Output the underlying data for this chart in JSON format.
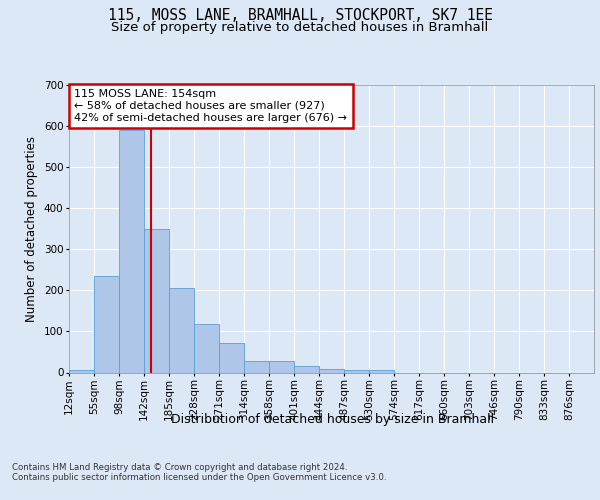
{
  "title1": "115, MOSS LANE, BRAMHALL, STOCKPORT, SK7 1EE",
  "title2": "Size of property relative to detached houses in Bramhall",
  "xlabel": "Distribution of detached houses by size in Bramhall",
  "ylabel": "Number of detached properties",
  "footnote": "Contains HM Land Registry data © Crown copyright and database right 2024.\nContains public sector information licensed under the Open Government Licence v3.0.",
  "bar_labels": [
    "12sqm",
    "55sqm",
    "98sqm",
    "142sqm",
    "185sqm",
    "228sqm",
    "271sqm",
    "314sqm",
    "358sqm",
    "401sqm",
    "444sqm",
    "487sqm",
    "530sqm",
    "574sqm",
    "617sqm",
    "660sqm",
    "703sqm",
    "746sqm",
    "790sqm",
    "833sqm",
    "876sqm"
  ],
  "bar_values": [
    7,
    235,
    590,
    350,
    205,
    118,
    73,
    27,
    27,
    15,
    8,
    7,
    7,
    0,
    0,
    0,
    0,
    0,
    0,
    0,
    0
  ],
  "bar_color": "#aec6e8",
  "bar_edge_color": "#5a9fd4",
  "bar_width": 1.0,
  "vline_color": "#cc0000",
  "ylim": [
    0,
    700
  ],
  "annotation_text": "115 MOSS LANE: 154sqm\n← 58% of detached houses are smaller (927)\n42% of semi-detached houses are larger (676) →",
  "annotation_box_color": "#cc0000",
  "background_color": "#dce8f5",
  "plot_background_color": "#dce8f5",
  "grid_color": "#ffffff",
  "title1_fontsize": 10.5,
  "title2_fontsize": 9.5,
  "xlabel_fontsize": 9,
  "ylabel_fontsize": 8.5,
  "tick_fontsize": 7.5,
  "annotation_fontsize": 8
}
